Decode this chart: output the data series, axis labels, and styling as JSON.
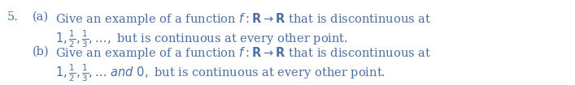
{
  "background_color": "#ffffff",
  "text_color": "#4a6fa5",
  "number": "5.",
  "part_a_label": "(a)",
  "part_b_label": "(b)",
  "part_a_line1": "Give an example of a function $f: \\mathbf{R} \\rightarrow \\mathbf{R}$ that is discontinuous at",
  "part_a_line2": "$1, \\frac{1}{2}, \\frac{1}{3}, \\ldots,$ but is continuous at every other point.",
  "part_b_line1": "Give an example of a function $f: \\mathbf{R} \\rightarrow \\mathbf{R}$ that is discontinuous at",
  "part_b_line2": "$1, \\frac{1}{2}, \\frac{1}{3}, \\ldots$ $\\mathit{and}$ $0,$ but is continuous at every other point.",
  "fontsize": 10.5,
  "fig_width": 7.07,
  "fig_height": 1.05,
  "dpi": 100
}
